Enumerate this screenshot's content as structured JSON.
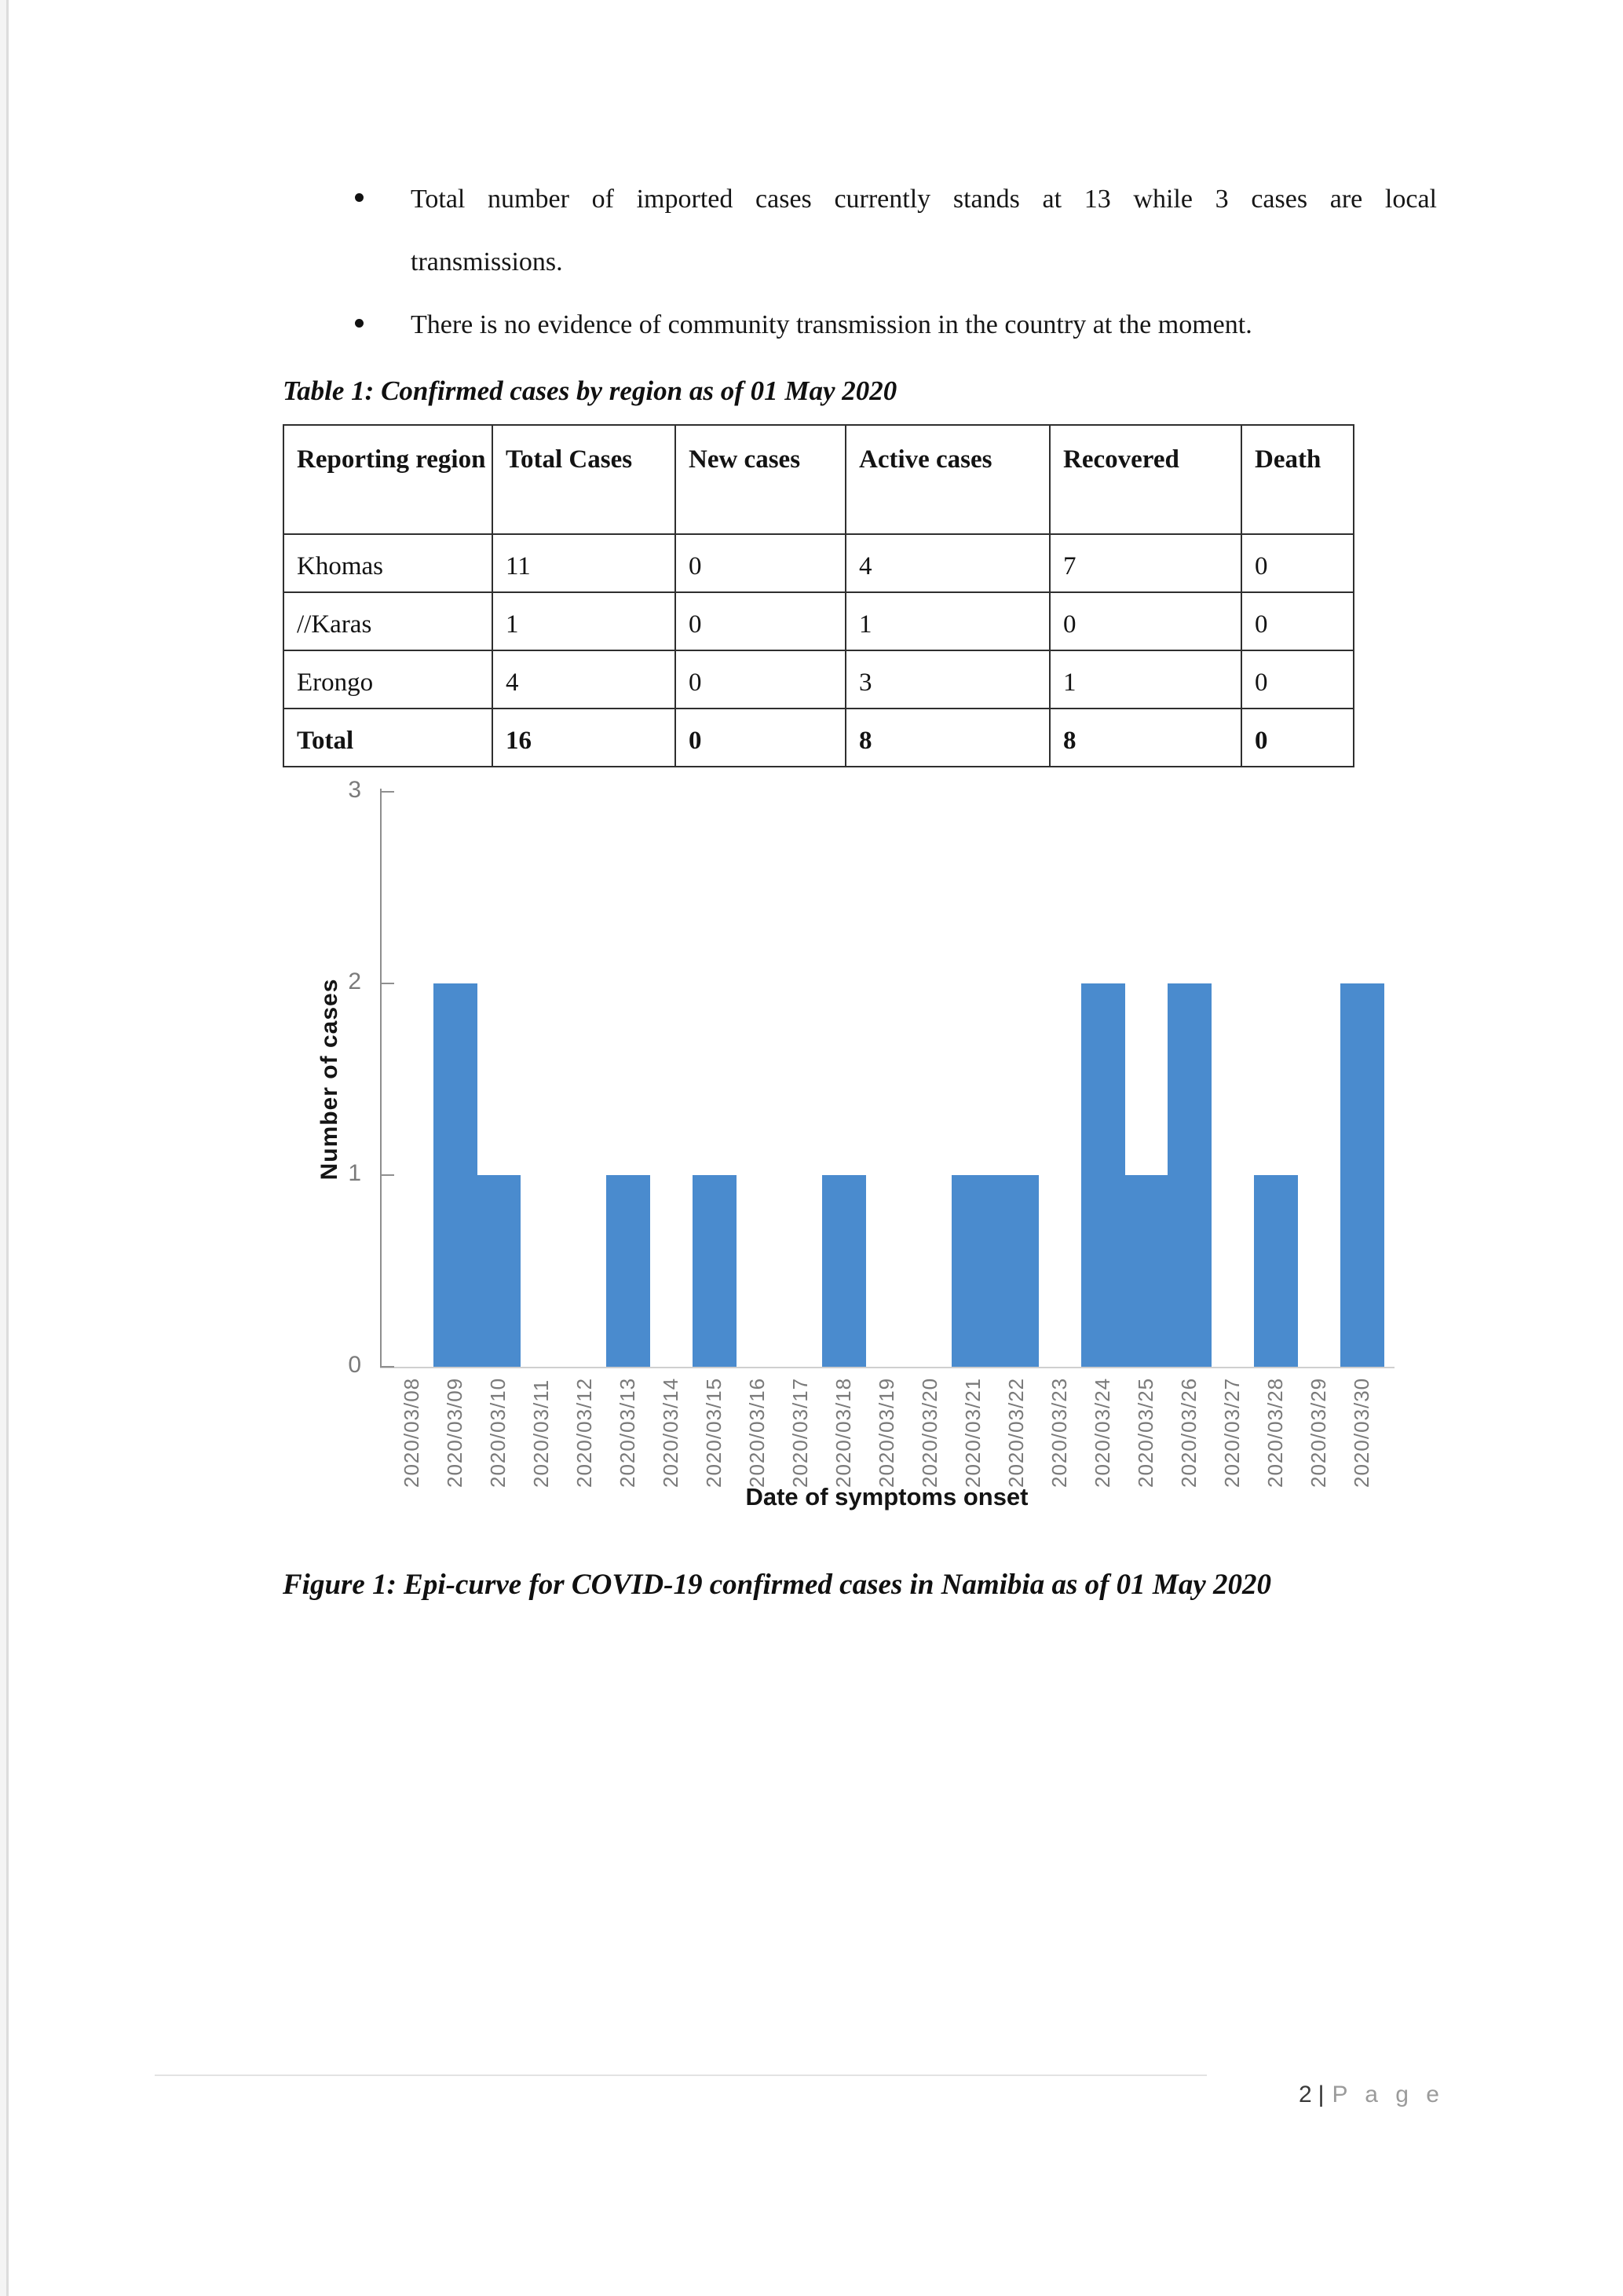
{
  "bullets": [
    {
      "lines": [
        "Total number of imported cases currently stands at 13 while 3 cases are local",
        "transmissions."
      ]
    },
    {
      "lines": [
        "There is no evidence of community transmission in the country at the moment."
      ]
    }
  ],
  "table": {
    "title": "Table 1: Confirmed cases by region as of 01 May 2020",
    "headers": [
      "Reporting region",
      "Total Cases",
      "New cases",
      "Active cases",
      "Recovered",
      "Death"
    ],
    "rows": [
      [
        "Khomas",
        "11",
        "0",
        "4",
        "7",
        "0"
      ],
      [
        "//Karas",
        "1",
        "0",
        "1",
        "0",
        "0"
      ],
      [
        "Erongo",
        "4",
        "0",
        "3",
        "1",
        "0"
      ]
    ],
    "total_row": [
      "Total",
      "16",
      "0",
      "8",
      "8",
      "0"
    ]
  },
  "chart_data": {
    "type": "bar",
    "categories": [
      "2020/03/08",
      "2020/03/09",
      "2020/03/10",
      "2020/03/11",
      "2020/03/12",
      "2020/03/13",
      "2020/03/14",
      "2020/03/15",
      "2020/03/16",
      "2020/03/17",
      "2020/03/18",
      "2020/03/19",
      "2020/03/20",
      "2020/03/21",
      "2020/03/22",
      "2020/03/23",
      "2020/03/24",
      "2020/03/25",
      "2020/03/26",
      "2020/03/27",
      "2020/03/28",
      "2020/03/29",
      "2020/03/30"
    ],
    "values": [
      0,
      2,
      1,
      0,
      0,
      1,
      0,
      1,
      0,
      0,
      1,
      0,
      0,
      1,
      1,
      0,
      2,
      1,
      2,
      0,
      1,
      0,
      2
    ],
    "title": "",
    "xlabel": "Date of symptoms onset",
    "ylabel": "Number of cases",
    "ylim": [
      0,
      3
    ],
    "yticks": [
      0,
      1,
      2,
      3
    ],
    "bar_color": "#4a8bce",
    "grid": false,
    "legend_position": "none"
  },
  "figure_caption": "Figure 1: Epi-curve for COVID-19 confirmed cases in Namibia as of 01 May 2020",
  "footer": {
    "page_number": "2",
    "separator": "|",
    "page_label": "P a g e"
  }
}
